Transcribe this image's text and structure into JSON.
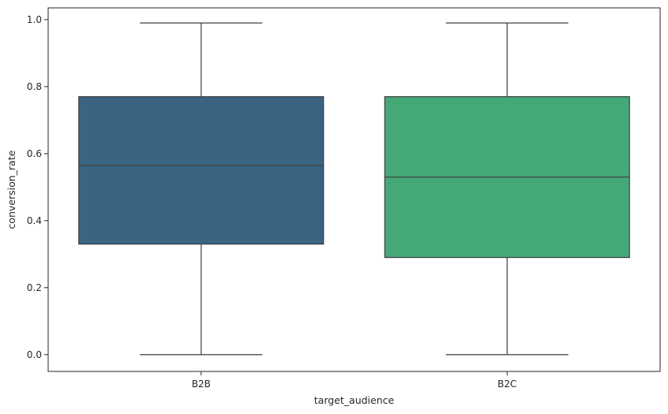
{
  "chart_data": {
    "type": "box",
    "xlabel": "target_audience",
    "ylabel": "conversion_rate",
    "ylim": [
      -0.05,
      1.035
    ],
    "yticks": [
      0.0,
      0.2,
      0.4,
      0.6,
      0.8,
      1.0
    ],
    "ytick_labels": [
      "0.0",
      "0.2",
      "0.4",
      "0.6",
      "0.8",
      "1.0"
    ],
    "categories": [
      "B2B",
      "B2C"
    ],
    "boxes": [
      {
        "name": "B2B",
        "min": 0.0,
        "q1": 0.33,
        "median": 0.565,
        "q3": 0.77,
        "max": 0.99,
        "color": "#3b6482"
      },
      {
        "name": "B2C",
        "min": 0.0,
        "q1": 0.29,
        "median": 0.53,
        "q3": 0.77,
        "max": 0.99,
        "color": "#45a877"
      }
    ],
    "grid": false,
    "legend": "none"
  }
}
